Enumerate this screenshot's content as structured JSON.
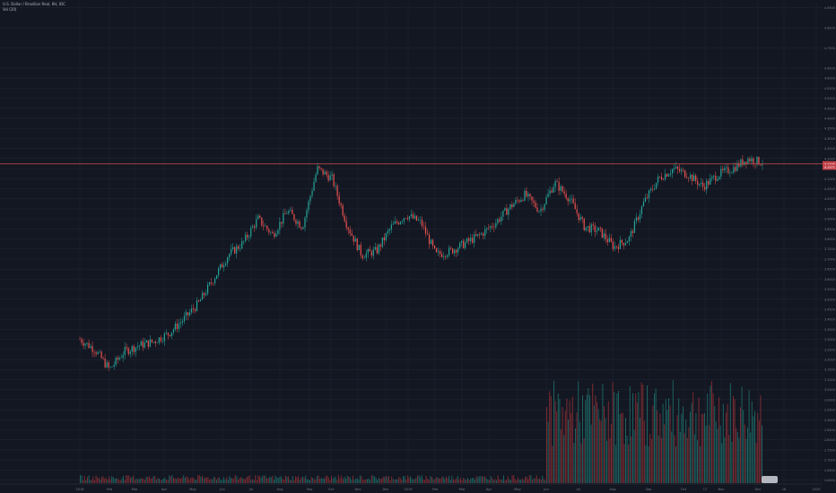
{
  "legend": {
    "symbol_line": "U.S. Dollar / Brazilian Real, 6H, IDC",
    "volume_line": "Vol (20)"
  },
  "colors": {
    "background": "#131722",
    "grid": "#1f2433",
    "axis_text": "#787b86",
    "up": "#26a69a",
    "down": "#ef5350",
    "resistance_line": "#b74a4a",
    "price_tag": "#c2434a",
    "volume_up": "#1f6f6a",
    "volume_down": "#8e2f35"
  },
  "chart_data": {
    "type": "candlestick",
    "title": "U.S. Dollar / Brazilian Real, 6H, IDC",
    "indicator": "Vol (20)",
    "x_tick_labels": [
      "2018",
      "Feb",
      "Mar",
      "Apr",
      "May",
      "Jun",
      "Jul",
      "Aug",
      "Sep",
      "Oct",
      "Nov",
      "Dec",
      "2019",
      "Feb",
      "Mar",
      "Apr",
      "May",
      "Jun",
      "Jul",
      "Aug",
      "Sep",
      "Oct",
      "17",
      "Nov",
      "Dec",
      "16",
      "2020"
    ],
    "y_tick_labels": [
      "4.9500",
      "4.8500",
      "4.7500",
      "4.6500",
      "4.6000",
      "4.5500",
      "4.5000",
      "4.4500",
      "4.4000",
      "4.3500",
      "4.3000",
      "4.2500",
      "4.2000",
      "4.1500",
      "4.1000",
      "4.0500",
      "4.0000",
      "3.9500",
      "3.9000",
      "3.8500",
      "3.8000",
      "3.7500",
      "3.7000",
      "3.6500",
      "3.6000",
      "3.5500",
      "3.5000",
      "3.4500",
      "3.4000",
      "3.3500",
      "3.3000",
      "3.2500",
      "3.2000",
      "3.1500",
      "3.1000",
      "3.0500",
      "3.0000",
      "2.9500",
      "2.9000",
      "2.8500",
      "2.8000",
      "2.7500",
      "2.7000",
      "2.6500",
      "2.6000"
    ],
    "ylim": [
      2.58,
      4.98
    ],
    "series": [
      {
        "name": "USDBRL",
        "x": [
          "2018-01",
          "2018-01-15",
          "2018-02",
          "2018-02-15",
          "2018-03",
          "2018-03-15",
          "2018-04",
          "2018-04-15",
          "2018-05",
          "2018-05-15",
          "2018-06",
          "2018-06-15",
          "2018-07",
          "2018-07-15",
          "2018-08",
          "2018-08-15",
          "2018-09",
          "2018-09-15",
          "2018-10",
          "2018-10-15",
          "2018-11",
          "2018-11-15",
          "2018-12",
          "2018-12-15",
          "2019-01",
          "2019-01-15",
          "2019-02",
          "2019-02-15",
          "2019-03",
          "2019-03-15",
          "2019-04",
          "2019-04-15",
          "2019-05",
          "2019-05-15",
          "2019-06",
          "2019-06-15",
          "2019-07",
          "2019-07-15",
          "2019-08",
          "2019-08-15",
          "2019-09",
          "2019-09-15",
          "2019-10",
          "2019-10-15",
          "2019-11",
          "2019-11-15",
          "2019-12"
        ],
        "values": [
          3.3,
          3.25,
          3.15,
          3.24,
          3.27,
          3.29,
          3.33,
          3.4,
          3.48,
          3.6,
          3.72,
          3.78,
          3.9,
          3.82,
          3.94,
          3.86,
          4.15,
          4.1,
          3.87,
          3.72,
          3.74,
          3.86,
          3.92,
          3.88,
          3.72,
          3.74,
          3.78,
          3.82,
          3.88,
          3.96,
          4.02,
          3.94,
          4.08,
          4.0,
          3.86,
          3.84,
          3.76,
          3.8,
          3.98,
          4.1,
          4.15,
          4.12,
          4.06,
          4.12,
          4.15,
          4.2,
          4.18
        ]
      }
    ],
    "resistance_level": 4.1735,
    "price_labels": [
      "4.1735",
      "4.1571"
    ],
    "volume_note": "volume histogram in lower pane, much larger from Jun 2019 onward"
  }
}
